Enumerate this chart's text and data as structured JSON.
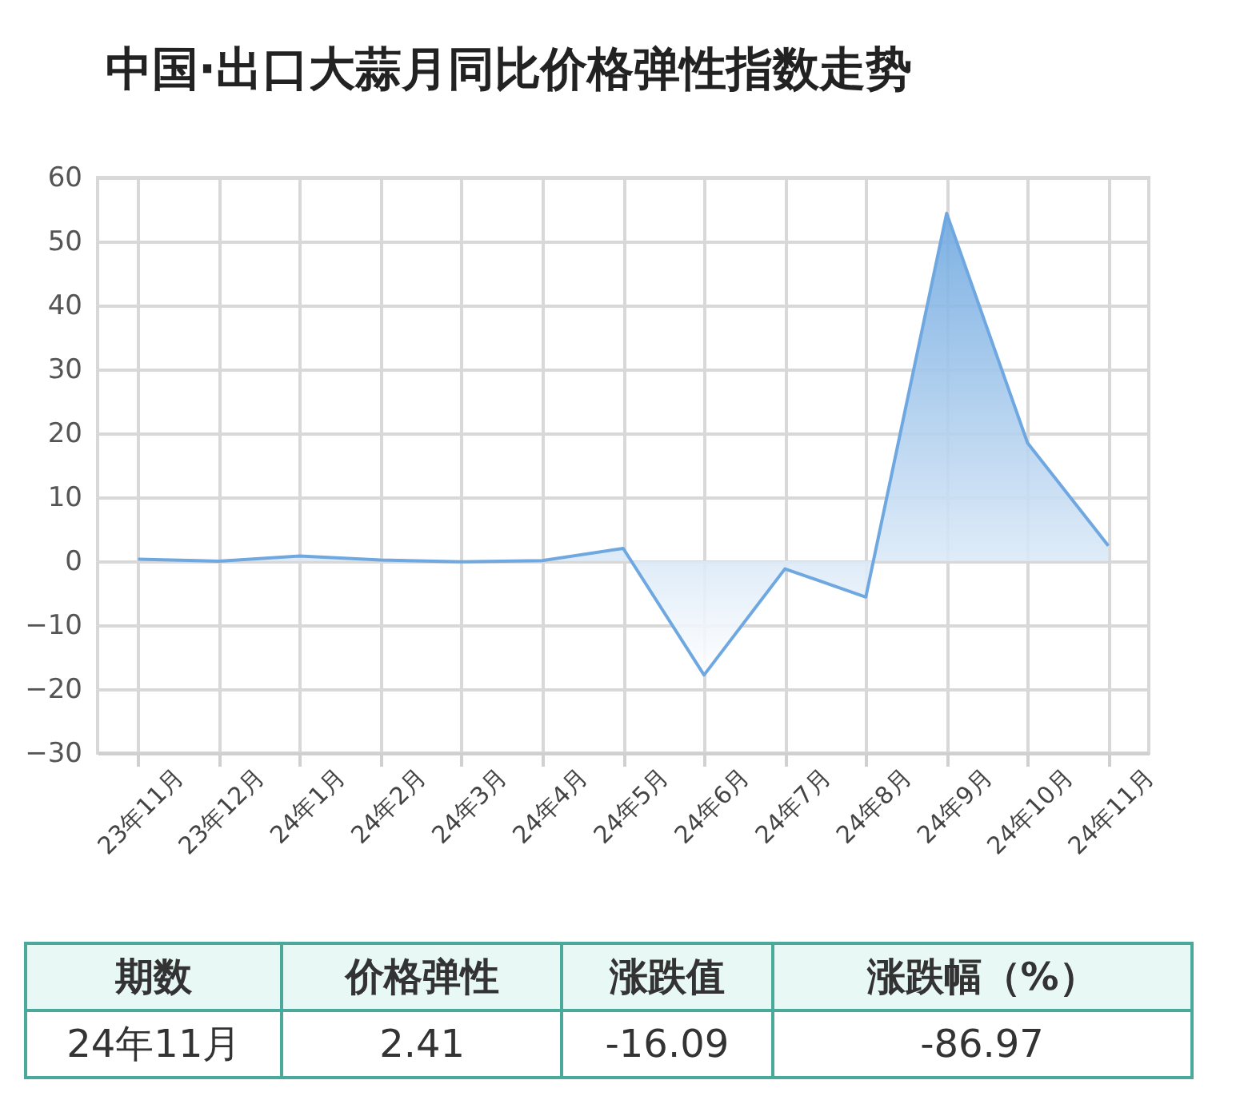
{
  "chart_data": {
    "type": "area",
    "title": "中国·出口大蒜月同比价格弹性指数走势",
    "categories": [
      "23年11月",
      "23年12月",
      "24年1月",
      "24年2月",
      "24年3月",
      "24年4月",
      "24年5月",
      "24年6月",
      "24年7月",
      "24年8月",
      "24年9月",
      "24年10月",
      "24年11月"
    ],
    "series": [
      {
        "color": "#6fa8e0",
        "values": [
          0.3,
          0.0,
          0.8,
          0.2,
          -0.1,
          0.1,
          2.0,
          -17.8,
          -1.2,
          -5.6,
          54.4,
          18.5,
          2.41
        ]
      }
    ],
    "ylim": [
      -30,
      60
    ],
    "yticks": [
      -30,
      -20,
      -10,
      0,
      10,
      20,
      30,
      40,
      50,
      60
    ],
    "grid": true,
    "annotations": [
      "期数",
      "价格弹性",
      "涨跌值",
      "涨跌幅（%）",
      "24年11月",
      "2.41",
      "-16.09",
      "-86.97"
    ]
  }
}
